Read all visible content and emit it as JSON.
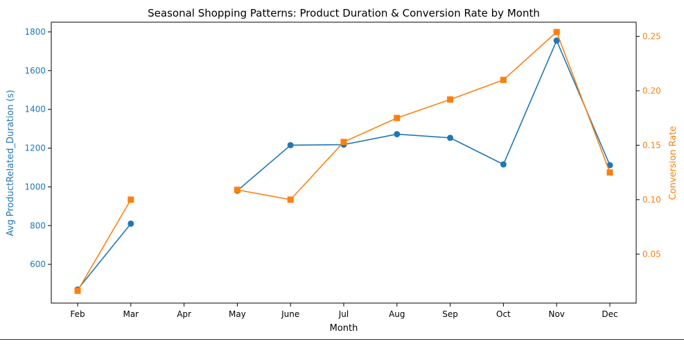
{
  "chart_data": {
    "type": "line",
    "title": "Seasonal Shopping Patterns: Product Duration & Conversion Rate by Month",
    "xlabel": "Month",
    "ylabel": "Avg ProductRelated_Duration (s)",
    "y2label": "Conversion Rate",
    "categories": [
      "Feb",
      "Mar",
      "Apr",
      "May",
      "June",
      "Jul",
      "Aug",
      "Sep",
      "Oct",
      "Nov",
      "Dec"
    ],
    "ylim": [
      400,
      1850
    ],
    "y2lim": [
      0.005,
      0.263
    ],
    "yticks": [
      600,
      800,
      1000,
      1200,
      1400,
      1600,
      1800
    ],
    "y2ticks": [
      "0.05",
      "0.10",
      "0.15",
      "0.20",
      "0.25"
    ],
    "grid": false,
    "series": [
      {
        "axis": "left",
        "marker": "circle",
        "color": "#1f77b4",
        "values": [
          470,
          810,
          null,
          980,
          1215,
          1218,
          1272,
          1253,
          1116,
          1755,
          1112
        ]
      },
      {
        "axis": "right",
        "marker": "square",
        "color": "#ff7f0e",
        "values": [
          0.0163,
          0.1,
          null,
          0.109,
          0.1,
          0.153,
          0.175,
          0.192,
          0.21,
          0.254,
          0.125
        ]
      }
    ]
  }
}
